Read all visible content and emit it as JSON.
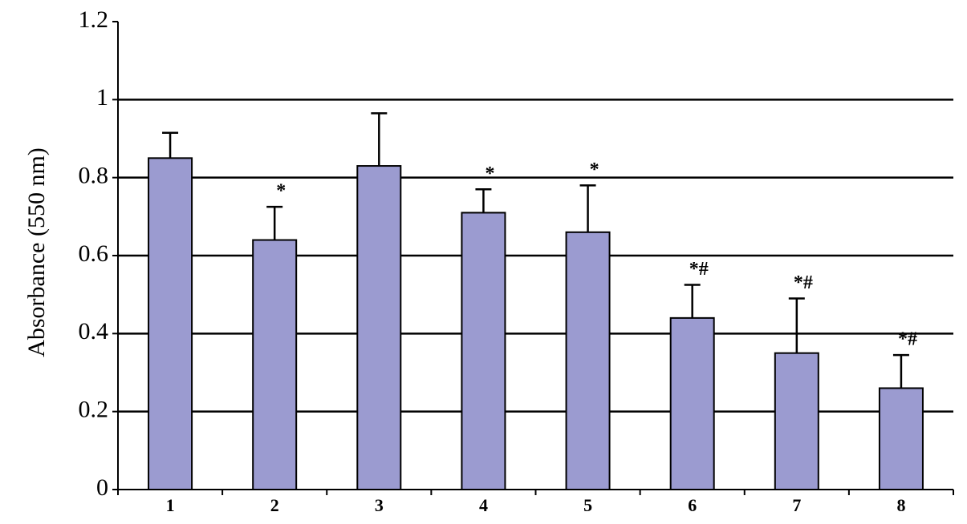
{
  "chart_data": {
    "type": "bar",
    "y_label": "Absorbance (550 nm)",
    "categories": [
      "1",
      "2",
      "3",
      "4",
      "5",
      "6",
      "7",
      "8"
    ],
    "values": [
      0.85,
      0.64,
      0.83,
      0.71,
      0.66,
      0.44,
      0.35,
      0.26
    ],
    "errors": [
      0.065,
      0.085,
      0.135,
      0.06,
      0.12,
      0.085,
      0.14,
      0.085
    ],
    "annotations": [
      null,
      "*",
      null,
      "*",
      "*",
      "*#",
      "*#",
      "*#"
    ],
    "color": "#9b9bd0",
    "ylim": [
      0,
      1.2
    ],
    "yticks": [
      0,
      0.2,
      0.4,
      0.6,
      0.8,
      1,
      1.2
    ],
    "grid": true
  }
}
